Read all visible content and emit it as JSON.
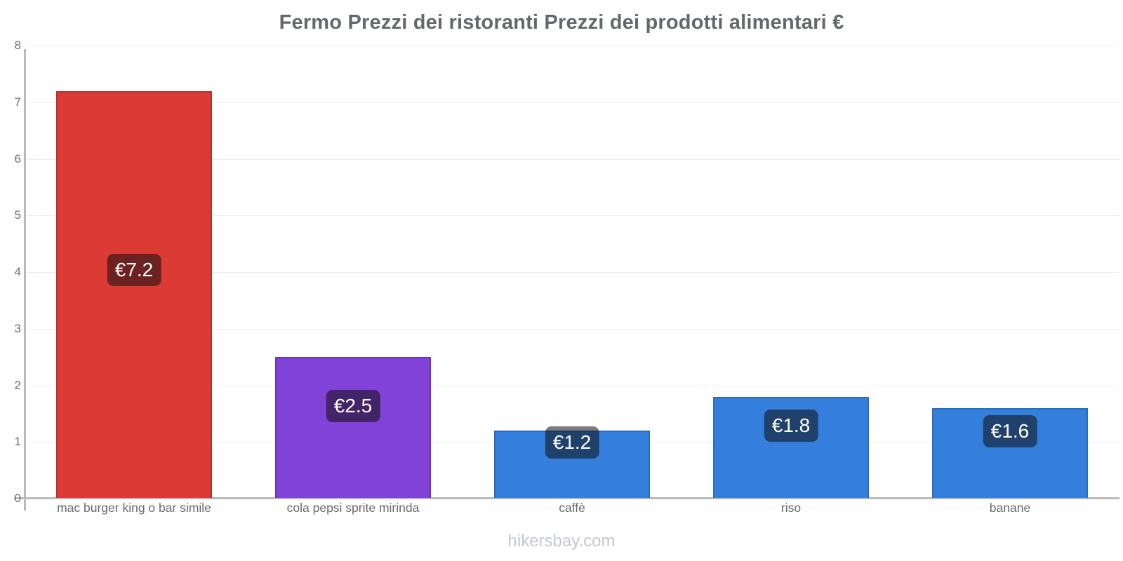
{
  "title": "Fermo Prezzi dei ristoranti Prezzi dei prodotti alimentari €",
  "footer": "hikersbay.com",
  "colors": {
    "axis": "#b9babc",
    "grid": "#ededef",
    "title_text": "#64686c",
    "tick_text": "#6b6f73",
    "footer_text": "#c3c8d2",
    "value_label_bg": "rgba(15,15,15,0.55)",
    "value_label_text": "#ffffff"
  },
  "chart_data": {
    "type": "bar",
    "title": "Fermo Prezzi dei ristoranti Prezzi dei prodotti alimentari €",
    "xlabel": "",
    "ylabel": "",
    "ylim": [
      0,
      8
    ],
    "yticks": [
      0,
      1,
      2,
      3,
      4,
      5,
      6,
      7,
      8
    ],
    "grid": true,
    "legend": false,
    "currency": "€",
    "categories": [
      "mac burger king o bar simile",
      "cola pepsi sprite mirinda",
      "caffè",
      "riso",
      "banane"
    ],
    "values": [
      7.2,
      2.5,
      1.2,
      1.8,
      1.6
    ],
    "value_labels": [
      "€7.2",
      "€2.5",
      "€1.2",
      "€1.8",
      "€1.6"
    ],
    "bar_colors": [
      "#db3a35",
      "#8142d8",
      "#337fdb",
      "#337fdb",
      "#337fdb"
    ],
    "bar_border_colors": [
      "#bc2f2b",
      "#6c35b7",
      "#2a6cbc",
      "#2a6cbc",
      "#2a6cbc"
    ],
    "value_label_y_positions": [
      4.04,
      1.63,
      0.99,
      1.29,
      1.19
    ]
  }
}
